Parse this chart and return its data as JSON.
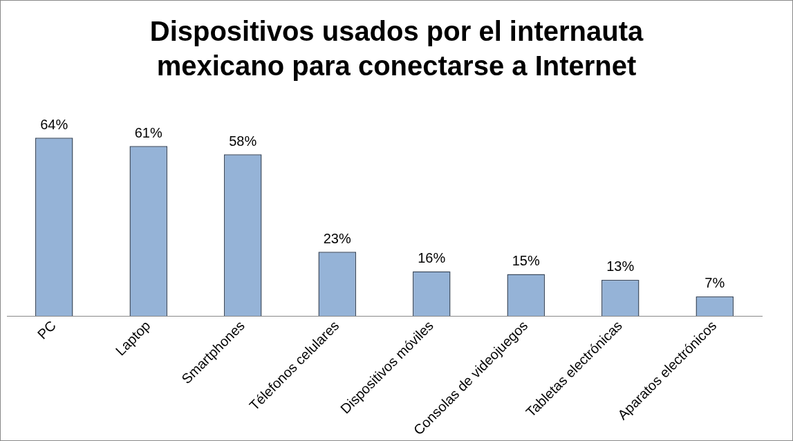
{
  "chart_data": {
    "type": "bar",
    "title": "Dispositivos usados por el internauta mexicano para conectarse a Internet",
    "categories": [
      "PC",
      "Laptop",
      "Smartphones",
      "Télefonos celulares",
      "Dispositivos móviles",
      "Consolas de videojuegos",
      "Tabletas electrónicas",
      "Aparatos electrónicos"
    ],
    "values": [
      64,
      61,
      58,
      23,
      16,
      15,
      13,
      7
    ],
    "value_labels": [
      "64%",
      "61%",
      "58%",
      "23%",
      "16%",
      "15%",
      "13%",
      "7%"
    ],
    "color": "#95b3d7",
    "grid": false,
    "legend": false
  }
}
